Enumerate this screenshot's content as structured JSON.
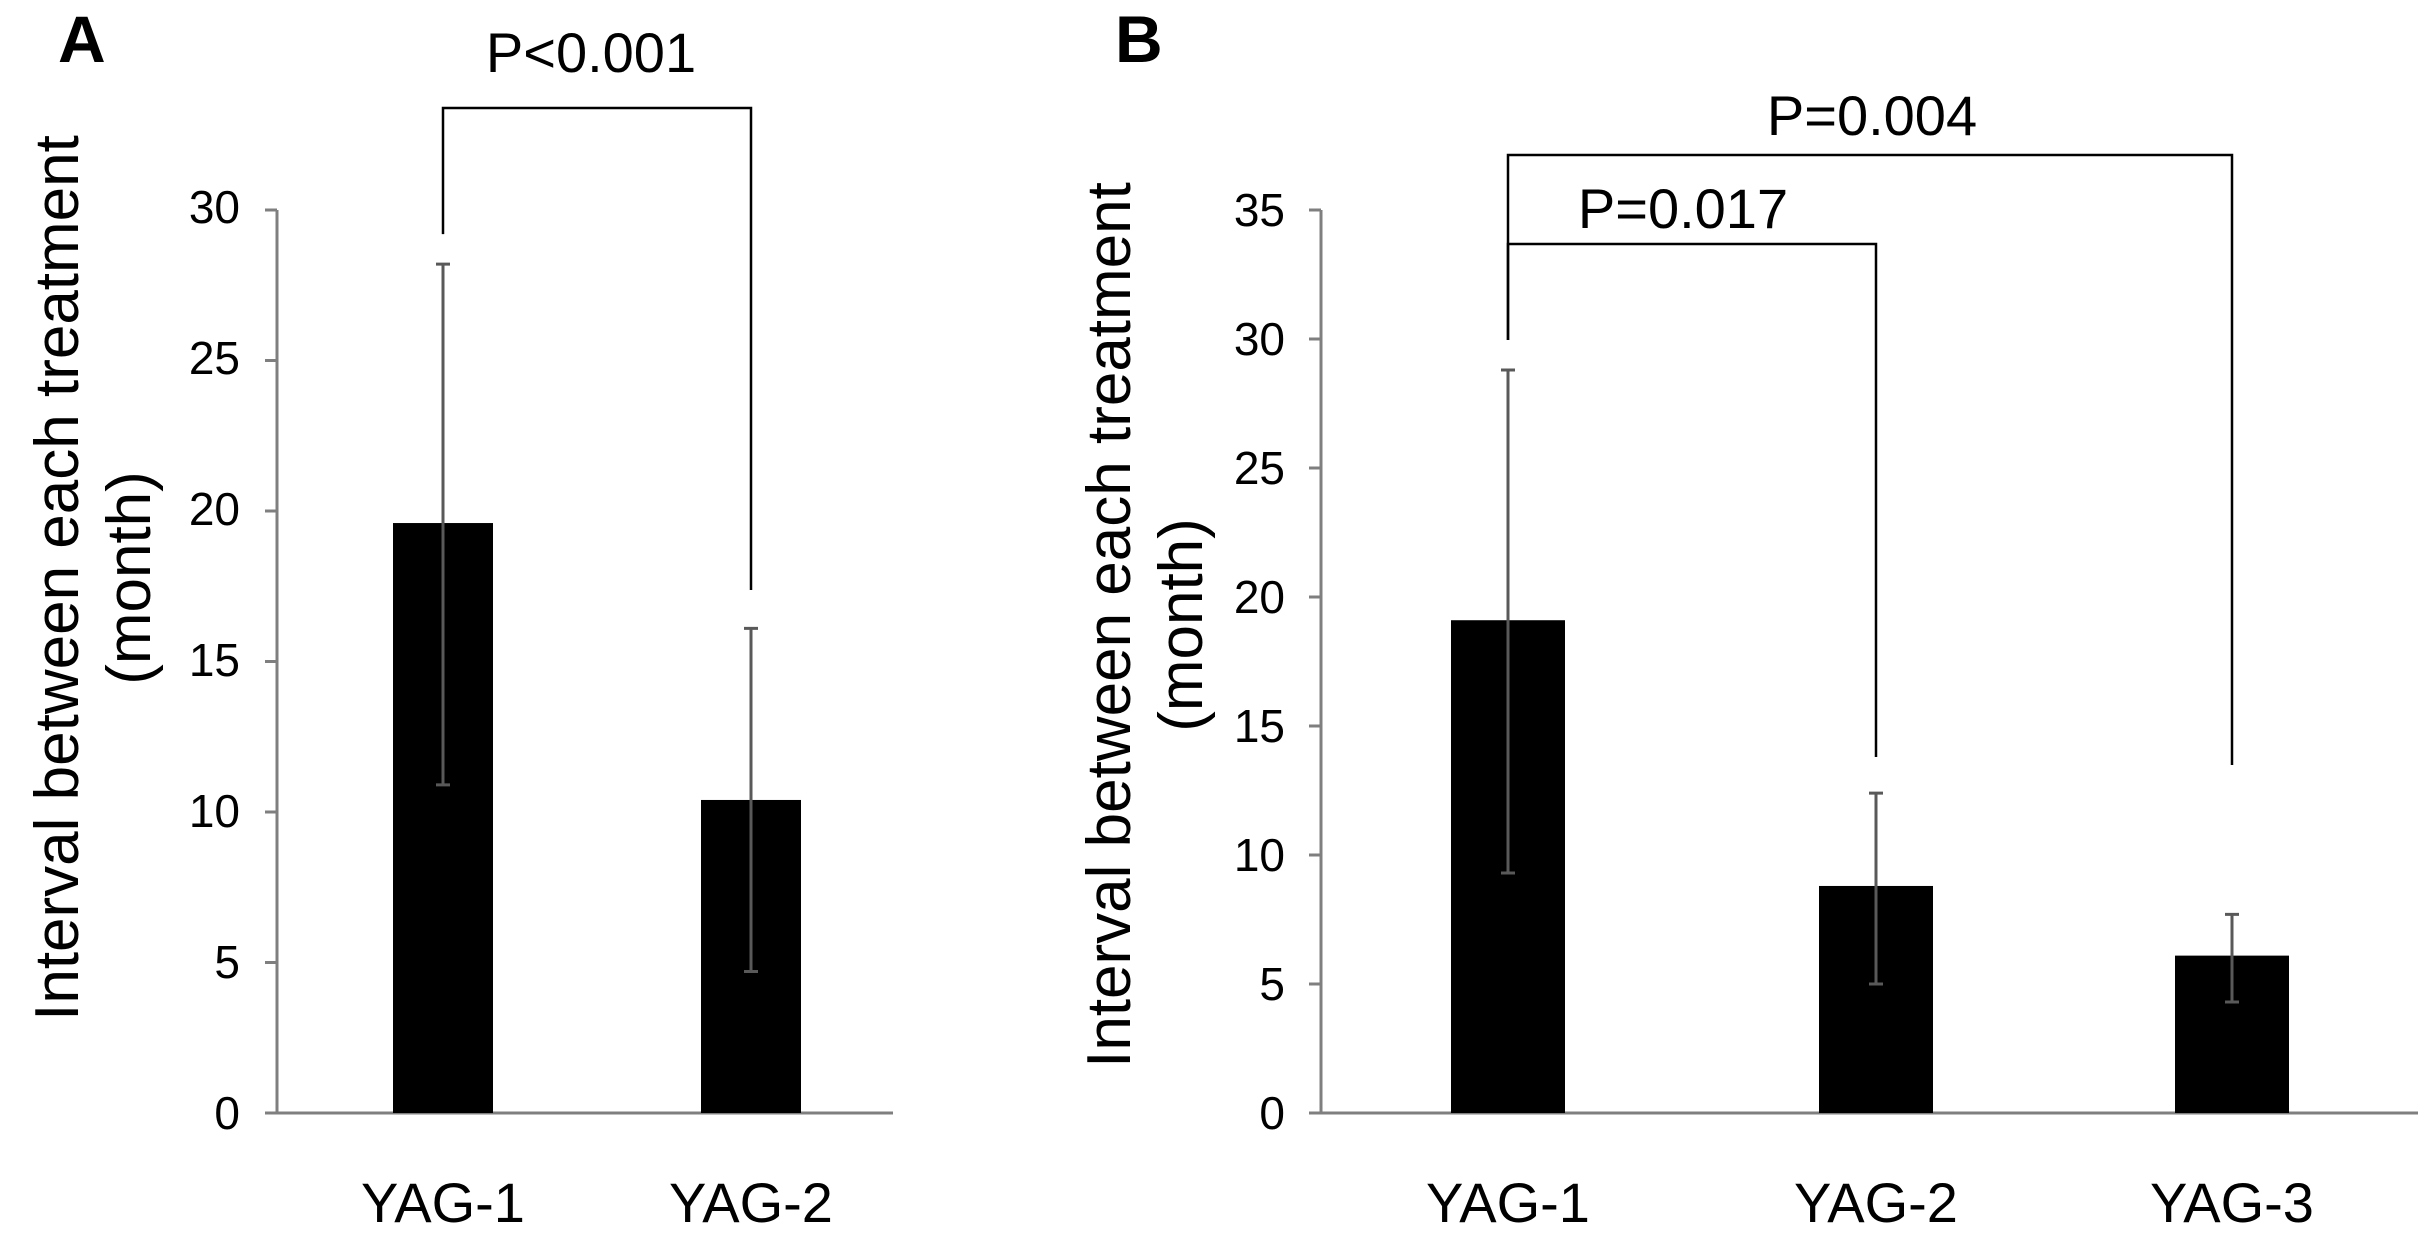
{
  "chart_data": [
    {
      "panel": "A",
      "type": "bar",
      "categories": [
        "YAG-1",
        "YAG-2"
      ],
      "values": [
        19.6,
        10.4
      ],
      "error_low": [
        10.9,
        4.7
      ],
      "error_high": [
        28.2,
        16.1
      ],
      "ylabel": "Interval between each treatment",
      "ylabel2": "(month)",
      "ylim": [
        0,
        30
      ],
      "yticks": [
        "0",
        "5",
        "10",
        "15",
        "20",
        "25",
        "30"
      ],
      "comparisons": [
        {
          "from": 0,
          "to": 1,
          "label": "P<0.001"
        }
      ]
    },
    {
      "panel": "B",
      "type": "bar",
      "categories": [
        "YAG-1",
        "YAG-2",
        "YAG-3"
      ],
      "values": [
        19.1,
        8.8,
        6.1
      ],
      "error_low": [
        9.3,
        5.0,
        4.3
      ],
      "error_high": [
        28.8,
        12.4,
        7.7
      ],
      "ylabel": "Interval between each treatment",
      "ylabel2": "(month)",
      "ylim": [
        0,
        35
      ],
      "yticks": [
        "0",
        "5",
        "10",
        "15",
        "20",
        "25",
        "30",
        "35"
      ],
      "comparisons": [
        {
          "from": 0,
          "to": 2,
          "label": "P=0.004"
        },
        {
          "from": 0,
          "to": 1,
          "label": "P=0.017"
        }
      ]
    }
  ]
}
